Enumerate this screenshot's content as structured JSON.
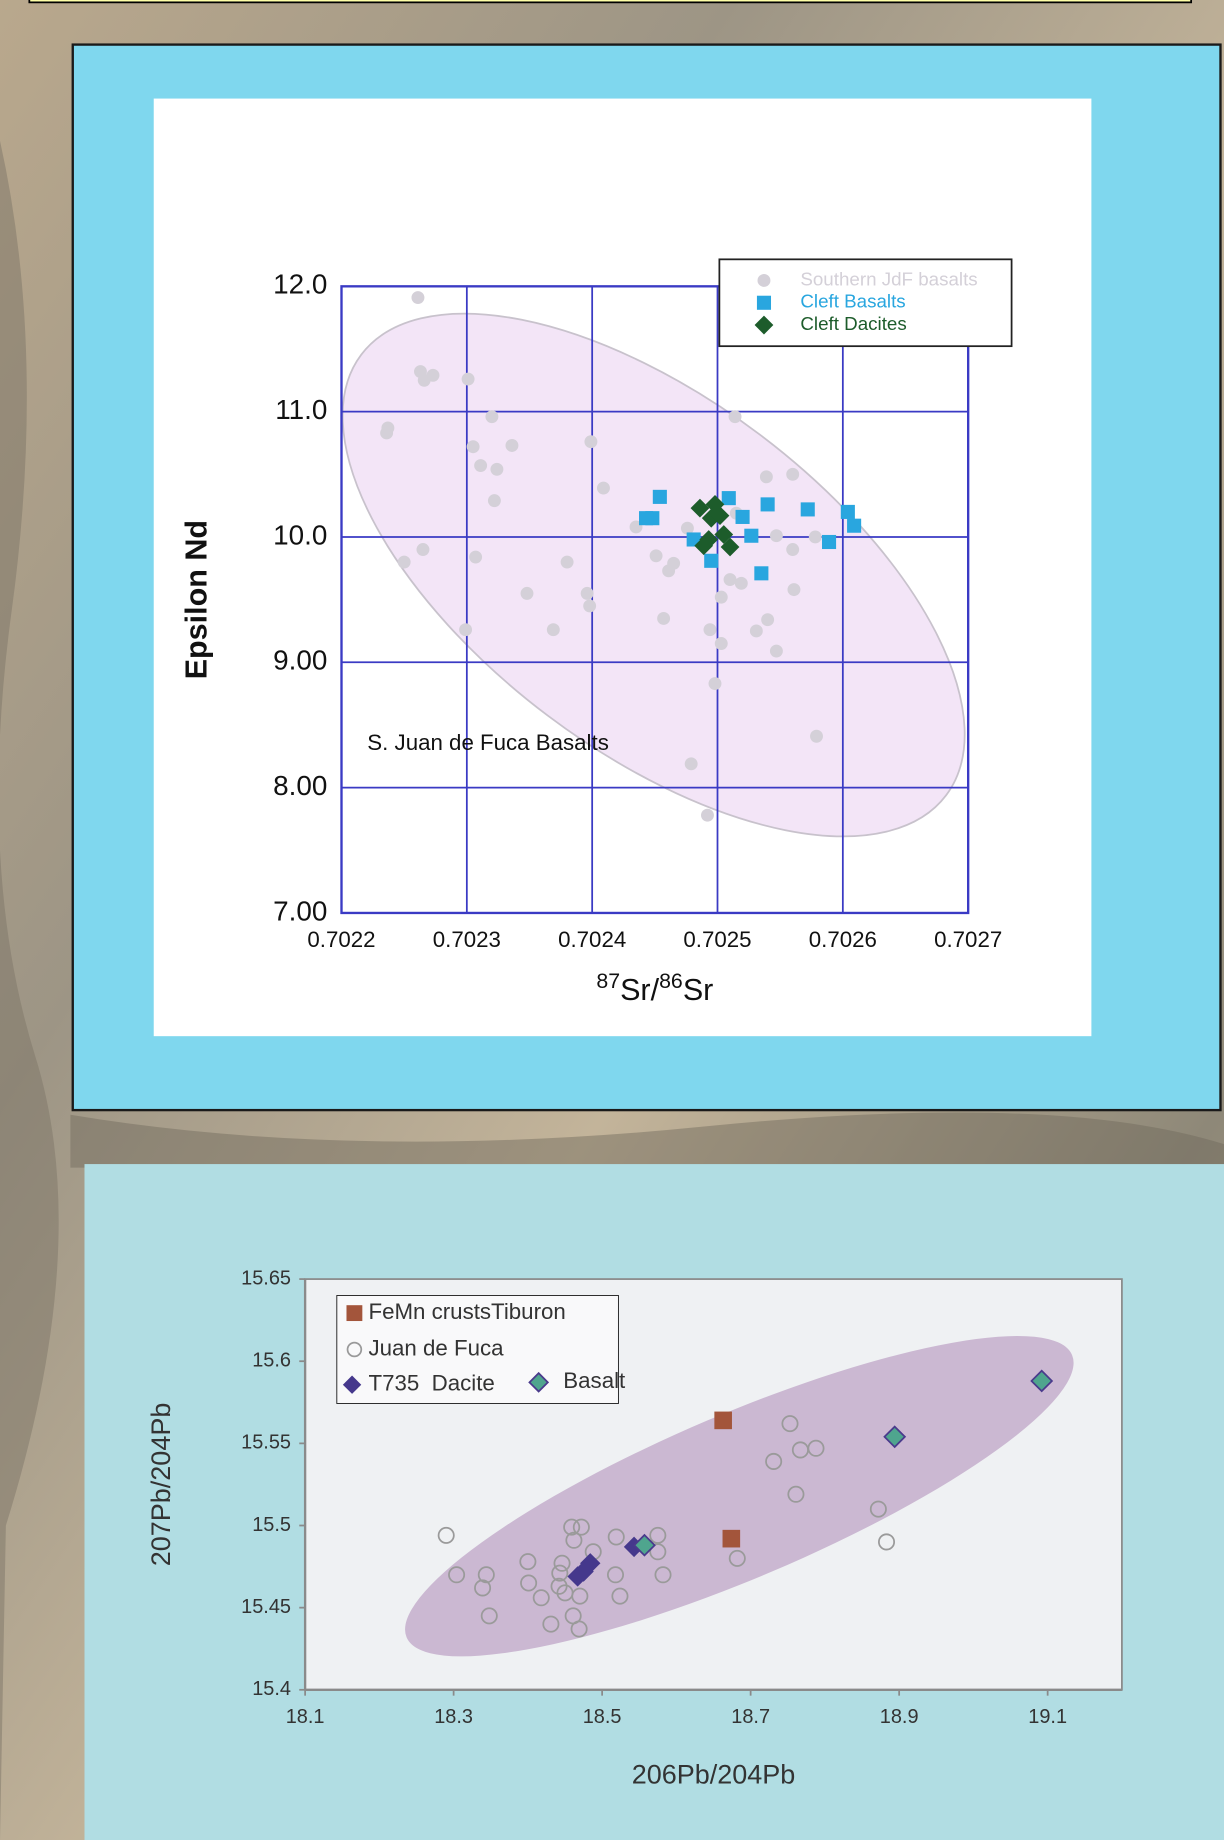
{
  "chart_data": [
    {
      "type": "scatter",
      "x_label": [
        {
          "text": "87",
          "sup": true
        },
        {
          "text": "Sr/"
        },
        {
          "text": "86",
          "sup": true
        },
        {
          "text": "Sr"
        }
      ],
      "y_label": "Epsilon Nd",
      "annotation": "S. Juan de Fuca Basalts",
      "xlim": [
        0.7022,
        0.7027
      ],
      "ylim": [
        7,
        12
      ],
      "xticks": [
        0.7022,
        0.7023,
        0.7024,
        0.7025,
        0.7026,
        0.7027
      ],
      "yticks": [
        {
          "value": 12,
          "label": "12.0"
        },
        {
          "value": 11,
          "label": "11.0"
        },
        {
          "value": 10,
          "label": "10.0"
        },
        {
          "value": 9,
          "label": "9.00"
        },
        {
          "value": 8,
          "label": "8.00"
        },
        {
          "value": 7,
          "label": "7.00"
        }
      ],
      "grid": true,
      "grid_color": "#3a3ac4",
      "legend": "upper right",
      "legend_text_colored": true,
      "series": [
        {
          "name": "Southern JdF basalts",
          "color": "#d4d0d8",
          "marker": "circle",
          "x": [
            0.702261,
            0.702263,
            0.702266,
            0.702273,
            0.702301,
            0.702236,
            0.702237,
            0.70232,
            0.702305,
            0.702336,
            0.702311,
            0.702324,
            0.702322,
            0.702399,
            0.702409,
            0.70225,
            0.702265,
            0.702307,
            0.702299,
            0.702348,
            0.702369,
            0.70238,
            0.702396,
            0.702398,
            0.702435,
            0.702451,
            0.702461,
            0.702465,
            0.702457,
            0.702514,
            0.702539,
            0.70256,
            0.702547,
            0.70256,
            0.702578,
            0.702561,
            0.70251,
            0.702519,
            0.702503,
            0.702494,
            0.702503,
            0.702531,
            0.70254,
            0.702547,
            0.702498,
            0.702479,
            0.702492,
            0.702579,
            0.702476,
            0.702515
          ],
          "y": [
            11.91,
            11.32,
            11.25,
            11.29,
            11.26,
            10.83,
            10.87,
            10.96,
            10.72,
            10.73,
            10.57,
            10.54,
            10.29,
            10.76,
            10.39,
            9.8,
            9.9,
            9.84,
            9.26,
            9.55,
            9.26,
            9.8,
            9.55,
            9.45,
            10.08,
            9.85,
            9.73,
            9.79,
            9.35,
            10.96,
            10.48,
            10.5,
            10.01,
            9.9,
            10.0,
            9.58,
            9.66,
            9.63,
            9.52,
            9.26,
            9.15,
            9.25,
            9.34,
            9.09,
            8.83,
            8.19,
            7.78,
            8.41,
            10.07,
            10.19
          ]
        },
        {
          "name": "Cleft Basalts",
          "color": "#29a6df",
          "marker": "square",
          "x": [
            0.702454,
            0.702448,
            0.702443,
            0.702481,
            0.702495,
            0.702509,
            0.70252,
            0.702527,
            0.702535,
            0.70254,
            0.702572,
            0.702604,
            0.702609,
            0.702589
          ],
          "y": [
            10.32,
            10.15,
            10.15,
            9.98,
            9.81,
            10.31,
            10.16,
            10.01,
            9.71,
            10.26,
            10.22,
            10.2,
            10.09,
            9.96
          ]
        },
        {
          "name": "Cleft Dacites",
          "color": "#1d5c2b",
          "marker": "diamond",
          "x": [
            0.702486,
            0.702498,
            0.702495,
            0.702502,
            0.702493,
            0.702505,
            0.70251,
            0.702489
          ],
          "y": [
            10.23,
            10.26,
            10.15,
            10.17,
            9.98,
            10.02,
            9.92,
            9.93
          ]
        }
      ]
    },
    {
      "type": "scatter",
      "x_label": [
        {
          "text": "206Pb/204Pb"
        }
      ],
      "y_label": "207Pb/204Pb",
      "xlim": [
        18.1,
        19.2
      ],
      "ylim": [
        15.4,
        15.65
      ],
      "xticks": [
        18.1,
        18.3,
        18.5,
        18.7,
        18.9,
        19.1
      ],
      "yticks": [
        15.65,
        15.6,
        15.55,
        15.5,
        15.45,
        15.4
      ],
      "grid": false,
      "legend": "upper left",
      "legend_text_colored": false,
      "series": [
        {
          "name": "FeMn crustsTiburon",
          "color": "#a3553b",
          "marker": "square",
          "x": [
            18.663,
            18.674
          ],
          "y": [
            15.564,
            15.492
          ]
        },
        {
          "name": "Juan de Fuca",
          "color": "#9a9a9a",
          "marker": "open-circle",
          "x": [
            18.29,
            18.304,
            18.344,
            18.339,
            18.348,
            18.4,
            18.401,
            18.418,
            18.431,
            18.442,
            18.443,
            18.446,
            18.45,
            18.459,
            18.472,
            18.462,
            18.461,
            18.469,
            18.47,
            18.488,
            18.519,
            18.524,
            18.518,
            18.575,
            18.575,
            18.582,
            18.682,
            18.731,
            18.753,
            18.767,
            18.788,
            18.761,
            18.872,
            18.883
          ],
          "y": [
            15.494,
            15.47,
            15.47,
            15.462,
            15.445,
            15.478,
            15.465,
            15.456,
            15.44,
            15.463,
            15.471,
            15.477,
            15.459,
            15.499,
            15.499,
            15.491,
            15.445,
            15.437,
            15.457,
            15.484,
            15.493,
            15.457,
            15.47,
            15.494,
            15.484,
            15.47,
            15.48,
            15.539,
            15.562,
            15.546,
            15.547,
            15.519,
            15.51,
            15.49
          ]
        },
        {
          "name": "T735  Dacite",
          "color": "#45388c",
          "marker": "diamond",
          "x": [
            18.467,
            18.475,
            18.484,
            18.543
          ],
          "y": [
            15.469,
            15.472,
            15.477,
            15.487
          ]
        },
        {
          "name": "Basalt",
          "color": "#4fa58e",
          "edgecolor": "#4a3a8c",
          "marker": "diamond",
          "x": [
            18.557,
            18.894,
            19.092
          ],
          "y": [
            15.488,
            15.554,
            15.588
          ]
        }
      ]
    }
  ]
}
